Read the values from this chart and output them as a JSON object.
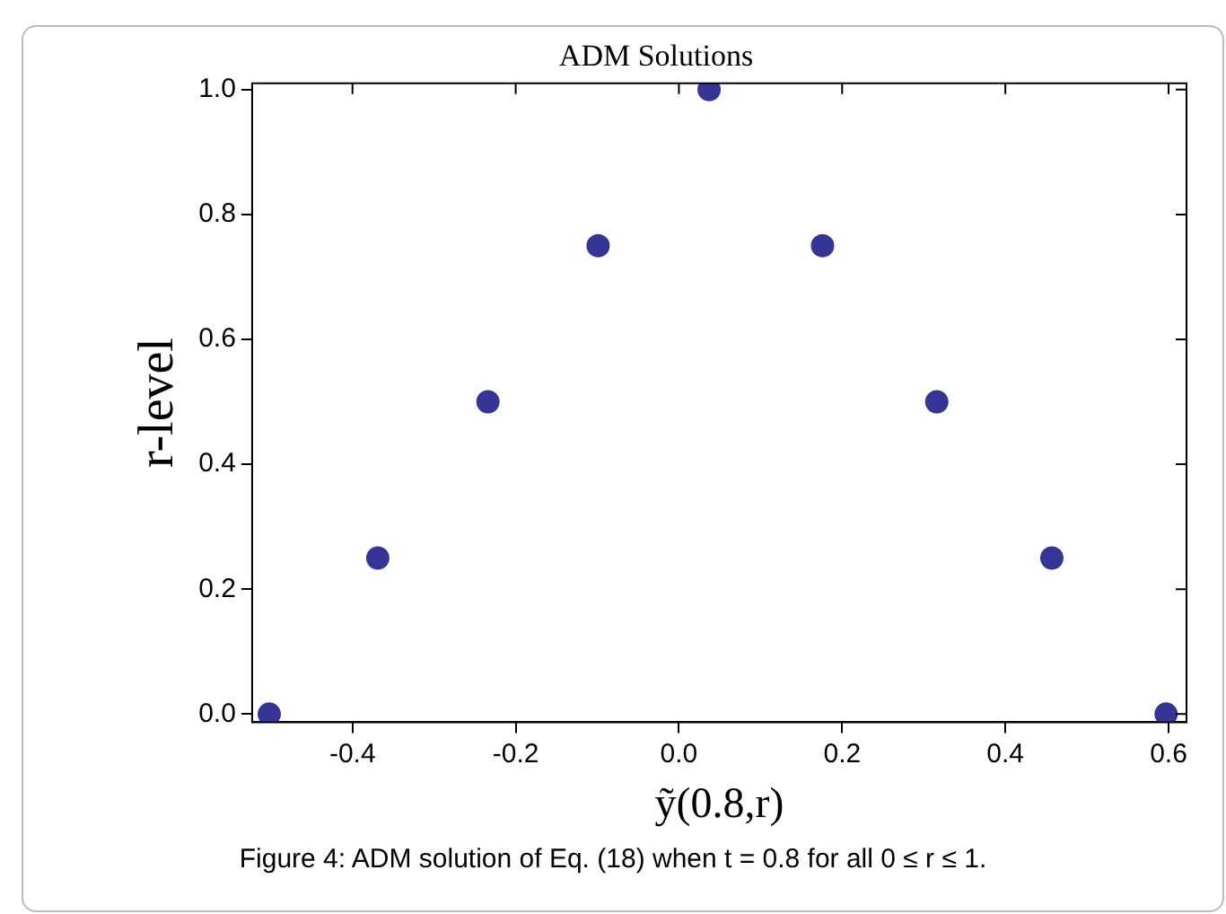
{
  "chart_data": {
    "type": "scatter",
    "title": "ADM Solutions",
    "xlabel": "ỹ(0.8,r)",
    "ylabel": "r-level",
    "annotations": [
      "Figure 4: ADM solution of Eq. (18) when t = 0.8 for all 0 ≤ r ≤ 1."
    ],
    "x": [
      -0.502,
      -0.369,
      -0.234,
      -0.099,
      0.037,
      0.176,
      0.316,
      0.457,
      0.597
    ],
    "series": [
      {
        "color": "#353597",
        "values": [
          0,
          0.25,
          0.5,
          0.75,
          1,
          0.75,
          0.5,
          0.25,
          0
        ]
      }
    ],
    "xlim": [
      -0.523,
      0.622
    ],
    "xticks": [
      {
        "value": -0.4,
        "label": "-0.4"
      },
      {
        "value": -0.2,
        "label": "-0.2"
      },
      {
        "value": 0,
        "label": "0.0"
      },
      {
        "value": 0.2,
        "label": "0.2"
      },
      {
        "value": 0.4,
        "label": "0.4"
      },
      {
        "value": 0.6,
        "label": "0.6"
      }
    ],
    "ylim": [
      -0.013,
      1.01
    ],
    "yticks": [
      {
        "value": 0,
        "label": "0.0"
      },
      {
        "value": 0.2,
        "label": "0.2"
      },
      {
        "value": 0.4,
        "label": "0.4"
      },
      {
        "value": 0.6,
        "label": "0.6"
      },
      {
        "value": 0.8,
        "label": "0.8"
      },
      {
        "value": 1,
        "label": "1.0"
      }
    ],
    "grid": false,
    "legend": false,
    "marker": "circle"
  }
}
